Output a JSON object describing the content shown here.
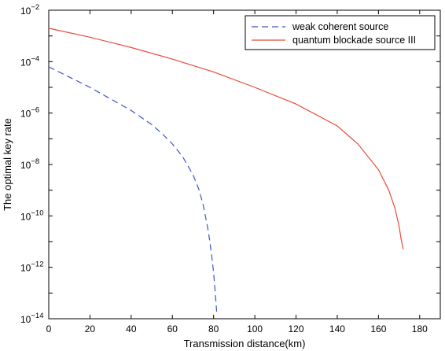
{
  "chart_data": {
    "type": "line",
    "xlabel": "Transmission distance(km)",
    "ylabel": "The optimal key rate",
    "xlim": [
      0,
      190
    ],
    "ylim_exponent": [
      -14,
      -2
    ],
    "yscale": "log",
    "x_ticks": [
      0,
      20,
      40,
      60,
      80,
      100,
      120,
      140,
      160,
      180
    ],
    "y_tick_exponents": [
      -14,
      -12,
      -10,
      -8,
      -6,
      -4,
      -2
    ],
    "y_tick_base": "10",
    "grid": false,
    "legend_position": "top-right",
    "series": [
      {
        "name": "weak coherent source",
        "color": "#3d52c8",
        "style": "dashed",
        "x": [
          0,
          10,
          20,
          30,
          40,
          50,
          55,
          60,
          65,
          70,
          73,
          75,
          77,
          78,
          79,
          80,
          80.5,
          81,
          81.5
        ],
        "log10_y": [
          -4.2,
          -4.6,
          -5.0,
          -5.45,
          -5.9,
          -6.45,
          -6.8,
          -7.2,
          -7.7,
          -8.4,
          -9.0,
          -9.6,
          -10.4,
          -10.9,
          -11.5,
          -12.2,
          -12.7,
          -13.2,
          -13.75
        ]
      },
      {
        "name": "quantum blockade source III",
        "color": "#e84b3a",
        "style": "solid",
        "x": [
          0,
          20,
          40,
          60,
          80,
          100,
          120,
          140,
          150,
          160,
          165,
          168,
          170,
          171,
          172
        ],
        "log10_y": [
          -2.7,
          -3.05,
          -3.45,
          -3.9,
          -4.4,
          -5.0,
          -5.65,
          -6.5,
          -7.2,
          -8.2,
          -9.0,
          -9.7,
          -10.4,
          -10.9,
          -11.3
        ]
      }
    ]
  }
}
